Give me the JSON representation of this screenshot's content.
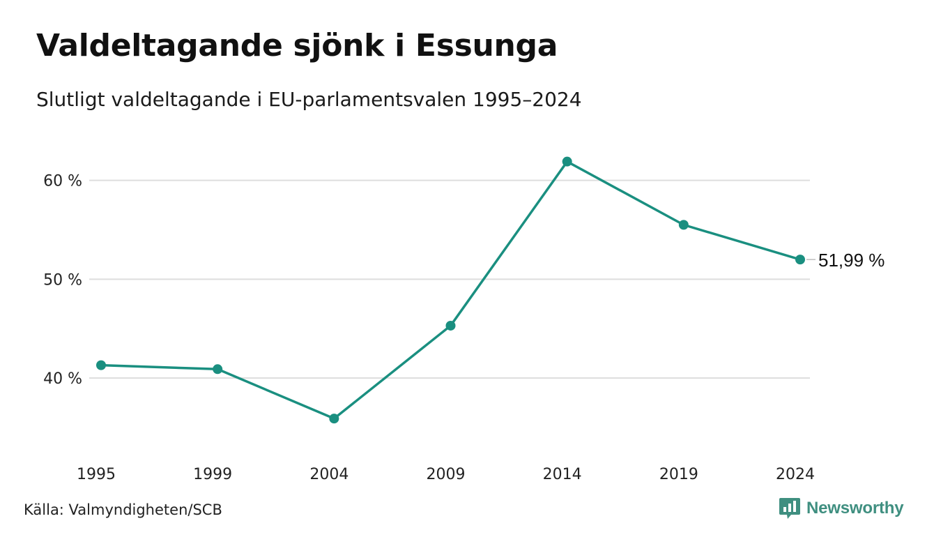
{
  "header": {
    "title": "Valdeltagande sjönk i Essunga",
    "subtitle": "Slutligt valdeltagande i EU-parlamentsvalen 1995–2024"
  },
  "footer": {
    "source": "Källa: Valmyndigheten/SCB",
    "logo_text": "Newsworthy"
  },
  "colors": {
    "line": "#1a8f80",
    "grid": "#dedede",
    "logo": "#3f8f80"
  },
  "chart_data": {
    "type": "line",
    "title": "Valdeltagande sjönk i Essunga",
    "subtitle": "Slutligt valdeltagande i EU-parlamentsvalen 1995–2024",
    "x": [
      "1995",
      "1999",
      "2004",
      "2009",
      "2014",
      "2019",
      "2024"
    ],
    "series": [
      {
        "values": [
          41.3,
          40.9,
          35.9,
          45.3,
          61.9,
          55.5,
          51.99
        ]
      }
    ],
    "ylim": [
      34.5,
      63.5
    ],
    "yticks": [
      40,
      50,
      60
    ],
    "ytick_labels": [
      "40 %",
      "50 %",
      "60 %"
    ],
    "grid": true,
    "end_label": "51,99 %"
  }
}
